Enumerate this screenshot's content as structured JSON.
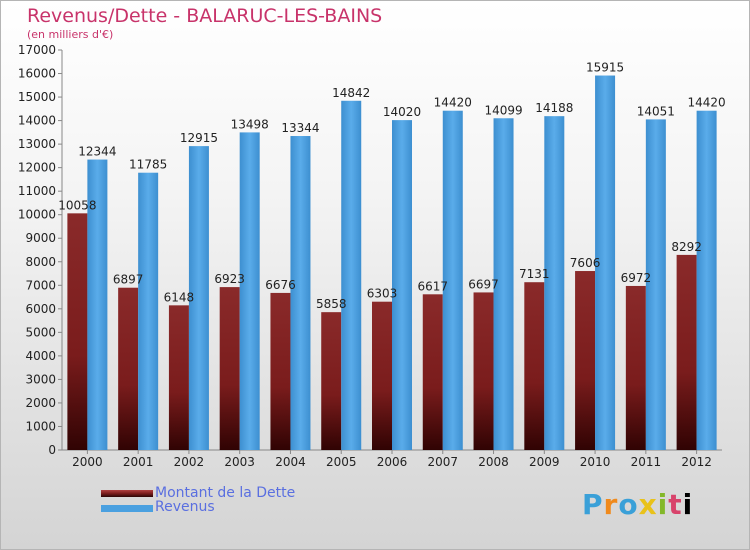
{
  "title": "Revenus/Dette - BALARUC-LES-BAINS",
  "subtitle": "(en milliers d'€)",
  "logo": [
    "P",
    "r",
    "o",
    "x",
    "i",
    "t",
    "i"
  ],
  "colors": {
    "dette": "#7a1c1c",
    "revenus": "#4aa0e0",
    "axis_text": "#222222",
    "legend_text": "#5a6fe0",
    "title": "#c8336a"
  },
  "chart_data": {
    "type": "bar",
    "categories": [
      "2000",
      "2001",
      "2002",
      "2003",
      "2004",
      "2005",
      "2006",
      "2007",
      "2008",
      "2009",
      "2010",
      "2011",
      "2012"
    ],
    "series": [
      {
        "name": "Montant de la Dette",
        "values": [
          10058,
          6897,
          6148,
          6923,
          6676,
          5858,
          6303,
          6617,
          6697,
          7131,
          7606,
          6972,
          8292
        ],
        "labels": [
          "10058",
          "6897",
          "6148",
          "6923",
          "6676",
          "5858",
          "6303",
          "6617",
          "6697",
          "7131",
          "7606",
          "6972",
          "8292"
        ]
      },
      {
        "name": "Revenus",
        "values": [
          12344,
          11785,
          12915,
          13498,
          13344,
          14842,
          14020,
          14420,
          14099,
          14188,
          15915,
          14051,
          14420
        ],
        "labels": [
          "12344",
          "11785",
          "12915",
          "13498",
          "13344",
          "14842",
          "14020",
          "14420",
          "14099",
          "14188",
          "15915",
          "14051",
          "14420"
        ]
      }
    ],
    "ylim": [
      0,
      17000
    ],
    "yticks": [
      0,
      1000,
      2000,
      3000,
      4000,
      5000,
      6000,
      7000,
      8000,
      9000,
      10000,
      11000,
      12000,
      13000,
      14000,
      15000,
      16000,
      17000
    ],
    "grid": false,
    "legend_position": "bottom-left"
  }
}
